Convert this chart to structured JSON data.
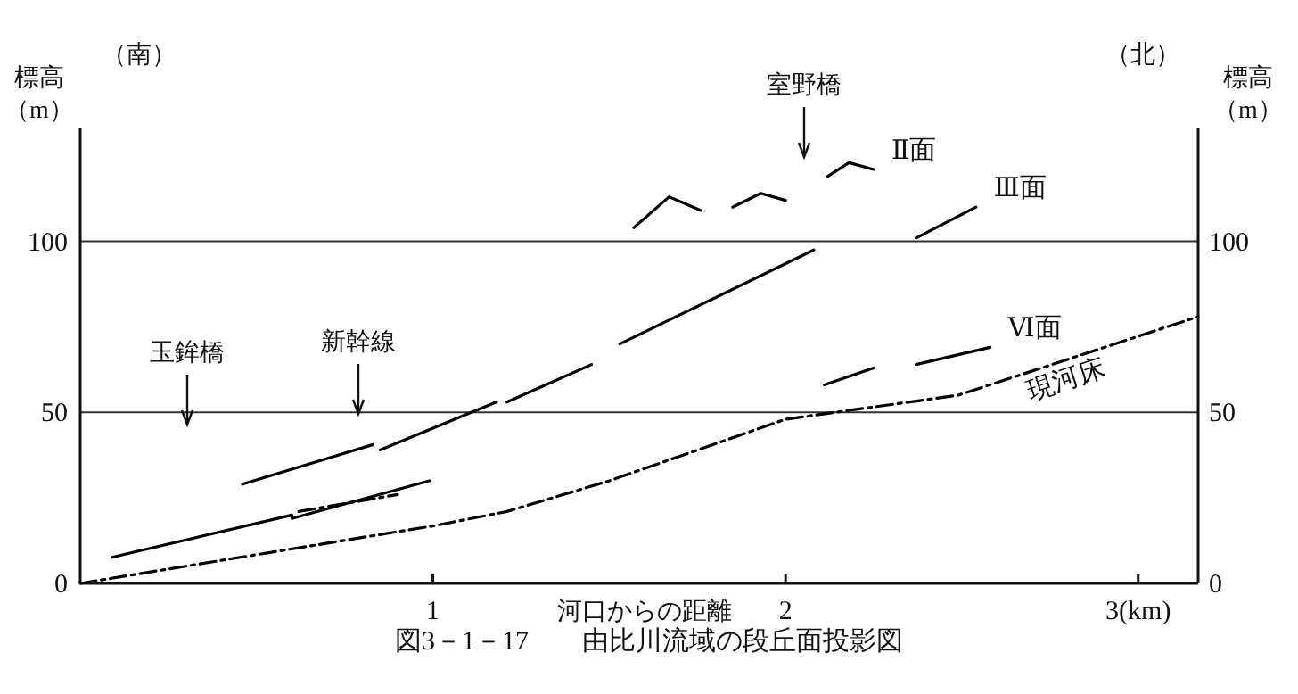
{
  "chart_data": {
    "type": "line",
    "title": "図3－1－17　　由比川流域の段丘面投影図",
    "xlabel": "河口からの距離",
    "ylabel": "標高（m）",
    "y2label": "標高（m）",
    "xlim": [
      0,
      3.17
    ],
    "xticks": [
      1,
      2,
      {
        "value": 3,
        "label": "3(km)"
      }
    ],
    "ylim": [
      0,
      133
    ],
    "yticks": [
      0,
      50,
      100
    ],
    "y2lim": [
      0,
      133
    ],
    "y2ticks": [
      0,
      50,
      100
    ],
    "grid": "y",
    "marker": "none",
    "annotations": [
      "（南）",
      "（北）",
      "玉鉾橋",
      "新幹線",
      "室野橋"
    ],
    "series": [
      {
        "color": "#000000",
        "x": [
          0.09,
          0.6,
          0.6,
          0.99
        ],
        "values": [
          7.6,
          20,
          19,
          30
        ]
      },
      {
        "color": "#000000",
        "line_style": "dashed",
        "x": [
          0.62,
          0.9
        ],
        "values": [
          21,
          26
        ]
      },
      {
        "color": "#000000",
        "x": [
          0.46,
          0.83
        ],
        "values": [
          29,
          40.6
        ]
      },
      {
        "color": "#000000",
        "x": [
          0.85,
          1.18
        ],
        "values": [
          39,
          53
        ]
      },
      {
        "color": "#000000",
        "x": [
          1.21,
          1.45
        ],
        "values": [
          53,
          64
        ]
      },
      {
        "color": "#000000",
        "x": [
          1.53,
          2.08
        ],
        "values": [
          70,
          97.5
        ]
      },
      {
        "name": "Ⅱ面",
        "color": "#000000",
        "x": [
          1.57,
          1.67,
          1.76,
          null,
          1.85,
          1.93,
          2.0,
          null,
          2.12,
          2.18,
          2.25
        ],
        "values": [
          104,
          113,
          109,
          null,
          110,
          114,
          112,
          null,
          119,
          123,
          121
        ]
      },
      {
        "name": "Ⅲ面",
        "color": "#000000",
        "x": [
          2.37,
          2.54
        ],
        "values": [
          101,
          110
        ]
      },
      {
        "name": "Ⅵ面",
        "color": "#000000",
        "x": [
          2.11,
          2.25,
          null,
          2.37,
          2.58
        ],
        "values": [
          58,
          63,
          null,
          64,
          69
        ]
      },
      {
        "name": "現河床",
        "color": "#000000",
        "line_style": "dashed",
        "x": [
          0,
          1,
          1.21,
          1.5,
          2.0,
          2.49,
          3.17
        ],
        "values": [
          0,
          16.8,
          21,
          30,
          48,
          55,
          78
        ]
      }
    ]
  }
}
